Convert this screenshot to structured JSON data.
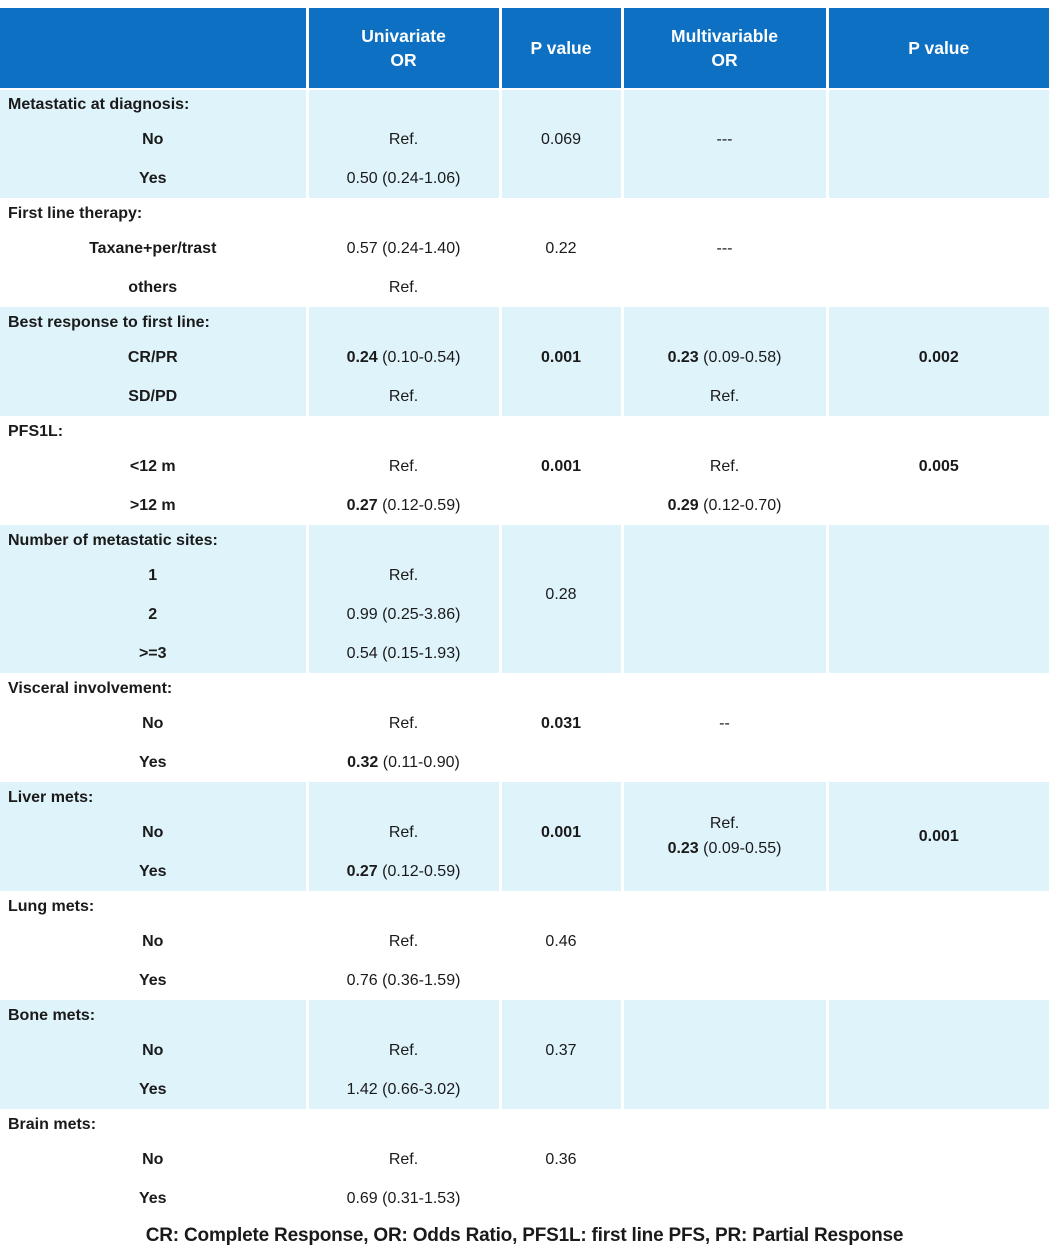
{
  "colors": {
    "header_bg": "#0d70c2",
    "header_text": "#ffffff",
    "band_bg": "#dff3fb",
    "text": "#1a1a1a"
  },
  "table": {
    "header": [
      "",
      "Univariate\nOR",
      "P value",
      "Multivariable\nOR",
      "P value"
    ],
    "sections": [
      {
        "band": true,
        "rows": [
          {
            "title": "Metastatic at diagnosis:"
          },
          {
            "label": "No",
            "cells": {
              "uni_or": {
                "text": "Ref."
              },
              "uni_p": {
                "text": "0.069"
              },
              "mv_or": {
                "text": "---"
              }
            }
          },
          {
            "label": "Yes",
            "cells": {
              "uni_or": {
                "text": "0.50 (0.24-1.06)"
              }
            }
          }
        ]
      },
      {
        "band": false,
        "rows": [
          {
            "title": "First line therapy:"
          },
          {
            "label": "Taxane+per/trast",
            "cells": {
              "uni_or": {
                "text": "0.57 (0.24-1.40)"
              },
              "uni_p": {
                "text": "0.22"
              },
              "mv_or": {
                "text": "---"
              }
            }
          },
          {
            "label": "others",
            "cells": {
              "uni_or": {
                "text": "Ref."
              }
            }
          }
        ]
      },
      {
        "band": true,
        "rows": [
          {
            "title": "Best response to first line:"
          },
          {
            "label": "CR/PR",
            "cells": {
              "uni_or": {
                "bold": "0.24",
                "text": " (0.10-0.54)"
              },
              "uni_p": {
                "text": "0.001",
                "em": true
              },
              "mv_or": {
                "bold": "0.23",
                "text": " (0.09-0.58)"
              },
              "mv_p": {
                "text": "0.002",
                "em": true
              }
            }
          },
          {
            "label": "SD/PD",
            "cells": {
              "uni_or": {
                "text": "Ref."
              },
              "mv_or": {
                "text": "Ref."
              }
            }
          }
        ]
      },
      {
        "band": false,
        "rows": [
          {
            "title": "PFS1L:"
          },
          {
            "label": "<12 m",
            "cells": {
              "uni_or": {
                "text": "Ref."
              },
              "uni_p": {
                "text": "0.001",
                "em": true
              },
              "mv_or": {
                "text": "Ref."
              },
              "mv_p": {
                "text": "0.005",
                "em": true
              }
            }
          },
          {
            "label": ">12 m",
            "cells": {
              "uni_or": {
                "bold": "0.27",
                "text": " (0.12-0.59)"
              },
              "mv_or": {
                "bold": "0.29",
                "text": " (0.12-0.70)"
              }
            }
          }
        ]
      },
      {
        "band": true,
        "rows": [
          {
            "title": "Number of metastatic sites:"
          },
          {
            "label": "1",
            "cells": {
              "uni_or": {
                "text": "Ref."
              },
              "uni_p": {
                "text": "0.28",
                "span": 2
              }
            }
          },
          {
            "label": "2",
            "cells": {
              "uni_or": {
                "text": "0.99 (0.25-3.86)"
              }
            },
            "omit_cols": [
              "uni_p"
            ]
          },
          {
            "label": ">=3",
            "cells": {
              "uni_or": {
                "text": "0.54 (0.15-1.93)"
              }
            }
          }
        ]
      },
      {
        "band": false,
        "rows": [
          {
            "title": "Visceral involvement:"
          },
          {
            "label": "No",
            "cells": {
              "uni_or": {
                "text": "Ref."
              },
              "uni_p": {
                "text": "0.031",
                "em": true
              },
              "mv_or": {
                "text": "--"
              }
            }
          },
          {
            "label": "Yes",
            "cells": {
              "uni_or": {
                "bold": "0.32",
                "text": " (0.11-0.90)"
              }
            }
          }
        ]
      },
      {
        "band": true,
        "rows": [
          {
            "title": "Liver mets:",
            "cells": {
              "mv_or": {
                "span": 3,
                "lines": [
                  {
                    "text": "Ref."
                  },
                  {
                    "bold": "0.23",
                    "text": " (0.09-0.55)"
                  }
                ]
              },
              "mv_p": {
                "span": 3,
                "text": "0.001",
                "em": true
              }
            }
          },
          {
            "label": "No",
            "cells": {
              "uni_or": {
                "text": "Ref."
              },
              "uni_p": {
                "text": "0.001",
                "em": true
              }
            },
            "omit_cols": [
              "mv_or",
              "mv_p"
            ]
          },
          {
            "label": "Yes",
            "cells": {
              "uni_or": {
                "bold": "0.27",
                "text": " (0.12-0.59)"
              }
            },
            "omit_cols": [
              "mv_or",
              "mv_p"
            ]
          }
        ]
      },
      {
        "band": false,
        "rows": [
          {
            "title": "Lung mets:"
          },
          {
            "label": "No",
            "cells": {
              "uni_or": {
                "text": "Ref."
              },
              "uni_p": {
                "text": "0.46"
              }
            }
          },
          {
            "label": "Yes",
            "cells": {
              "uni_or": {
                "text": "0.76 (0.36-1.59)"
              }
            }
          }
        ]
      },
      {
        "band": true,
        "rows": [
          {
            "title": "Bone mets:"
          },
          {
            "label": "No",
            "cells": {
              "uni_or": {
                "text": "Ref."
              },
              "uni_p": {
                "text": "0.37"
              }
            }
          },
          {
            "label": "Yes",
            "cells": {
              "uni_or": {
                "text": "1.42 (0.66-3.02)"
              }
            }
          }
        ]
      },
      {
        "band": false,
        "rows": [
          {
            "title": "Brain mets:"
          },
          {
            "label": "No",
            "cells": {
              "uni_or": {
                "text": "Ref."
              },
              "uni_p": {
                "text": "0.36"
              }
            }
          },
          {
            "label": "Yes",
            "cells": {
              "uni_or": {
                "text": "0.69 (0.31-1.53)"
              }
            }
          }
        ]
      }
    ]
  },
  "footnote": "CR: Complete Response, OR: Odds Ratio, PFS1L: first line PFS, PR: Partial Response"
}
